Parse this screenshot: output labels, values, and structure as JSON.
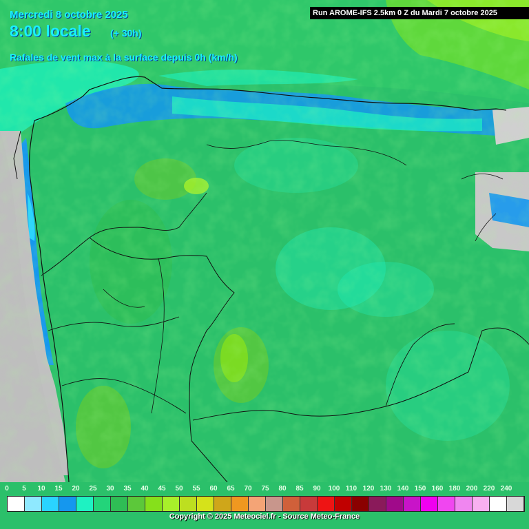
{
  "header": {
    "date": "Mercredi 8 octobre 2025",
    "time": "8:00 locale",
    "lead": "(+ 30h)",
    "subtitle": "Rafales de vent max à la surface depuis 0h (km/h)",
    "run": "Run AROME-IFS 2.5km 0 Z du Mardi 7 octobre 2025"
  },
  "legend": {
    "labels": [
      "0",
      "5",
      "10",
      "15",
      "20",
      "25",
      "30",
      "35",
      "40",
      "45",
      "50",
      "55",
      "60",
      "65",
      "70",
      "75",
      "80",
      "85",
      "90",
      "100",
      "110",
      "120",
      "130",
      "140",
      "150",
      "160",
      "180",
      "200",
      "220",
      "240"
    ],
    "colors": [
      "#ffffff",
      "#8fe9ff",
      "#2ad4ff",
      "#1597ee",
      "#1ef2c2",
      "#23d47a",
      "#2fbd55",
      "#5cc83a",
      "#86e01b",
      "#a8f02a",
      "#bddf20",
      "#d6e21a",
      "#cfa61a",
      "#f09820",
      "#f4a476",
      "#c8968c",
      "#d0603a",
      "#c83a3a",
      "#ee1414",
      "#c00000",
      "#8a0000",
      "#8a1a5a",
      "#a00a8a",
      "#c814c8",
      "#f000f0",
      "#f046f0",
      "#f086f0",
      "#f8b0f0",
      "#ffffff",
      "#d8d8d8"
    ]
  },
  "copyright": "Copyright © 2025 Meteociel.fr - Source Meteo-France"
}
